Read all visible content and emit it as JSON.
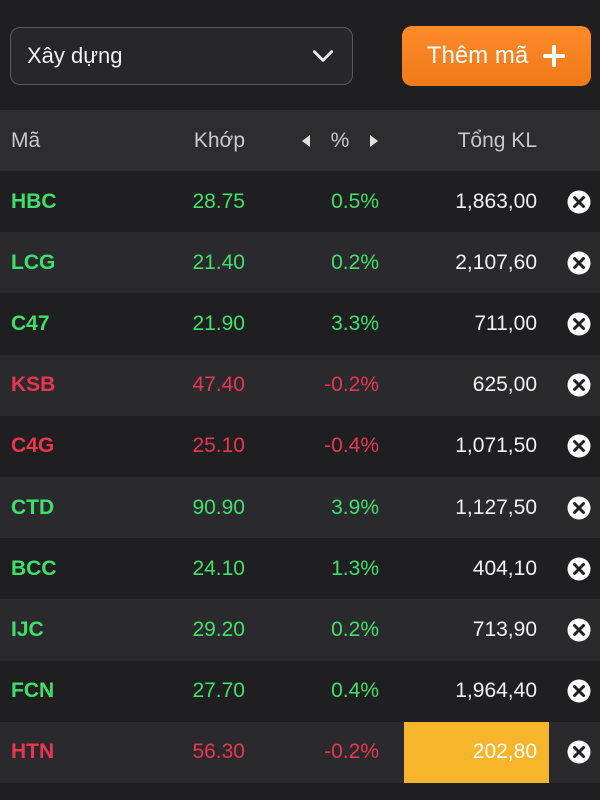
{
  "toolbar": {
    "category": "Xây dựng",
    "add_label": "Thêm mã"
  },
  "table": {
    "headers": {
      "symbol": "Mã",
      "price": "Khớp",
      "pct": "%",
      "volume": "Tổng KL"
    },
    "rows": [
      {
        "symbol": "HBC",
        "price": "28.75",
        "pct": "0.5%",
        "volume": "1,863,00",
        "trend": "up"
      },
      {
        "symbol": "LCG",
        "price": "21.40",
        "pct": "0.2%",
        "volume": "2,107,60",
        "trend": "up"
      },
      {
        "symbol": "C47",
        "price": "21.90",
        "pct": "3.3%",
        "volume": "711,00",
        "trend": "up"
      },
      {
        "symbol": "KSB",
        "price": "47.40",
        "pct": "-0.2%",
        "volume": "625,00",
        "trend": "down"
      },
      {
        "symbol": "C4G",
        "price": "25.10",
        "pct": "-0.4%",
        "volume": "1,071,50",
        "trend": "down"
      },
      {
        "symbol": "CTD",
        "price": "90.90",
        "pct": "3.9%",
        "volume": "1,127,50",
        "trend": "up"
      },
      {
        "symbol": "BCC",
        "price": "24.10",
        "pct": "1.3%",
        "volume": "404,10",
        "trend": "up"
      },
      {
        "symbol": "IJC",
        "price": "29.20",
        "pct": "0.2%",
        "volume": "713,90",
        "trend": "up"
      },
      {
        "symbol": "FCN",
        "price": "27.70",
        "pct": "0.4%",
        "volume": "1,964,40",
        "trend": "up"
      },
      {
        "symbol": "HTN",
        "price": "56.30",
        "pct": "-0.2%",
        "volume": "202,80",
        "trend": "down",
        "highlight": true
      }
    ]
  },
  "colors": {
    "up": "#3ee06a",
    "down": "#e8364e",
    "accent": "#f7931e",
    "highlight": "#f7b52b"
  },
  "icons": {
    "dropdown": "chevron-down-icon",
    "add": "plus-icon",
    "prev": "caret-left-icon",
    "next": "caret-right-icon",
    "remove": "close-circle-icon"
  }
}
